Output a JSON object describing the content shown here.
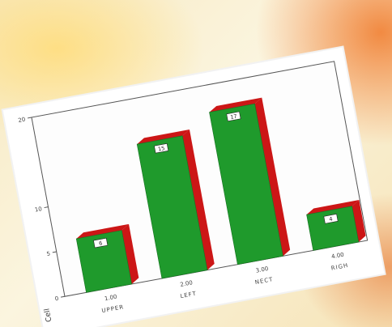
{
  "chart_data": {
    "type": "bar",
    "categories": [
      "1.00",
      "2.00",
      "3.00",
      "4.00"
    ],
    "category_sublabels": [
      "UPPER",
      "LEFT",
      "NECT",
      "RIGH"
    ],
    "values": [
      6,
      15,
      17,
      4
    ],
    "data_labels": [
      "6",
      "15",
      "17",
      "4"
    ],
    "ylabel": "Cell",
    "ylim": [
      0,
      20
    ],
    "yticks": [
      0,
      5,
      10,
      20
    ],
    "grid": false,
    "legend": "none",
    "colors": {
      "bar_front": "#1f9a2c",
      "bar_side": "#cc1616",
      "frame": "#ffffff"
    }
  }
}
